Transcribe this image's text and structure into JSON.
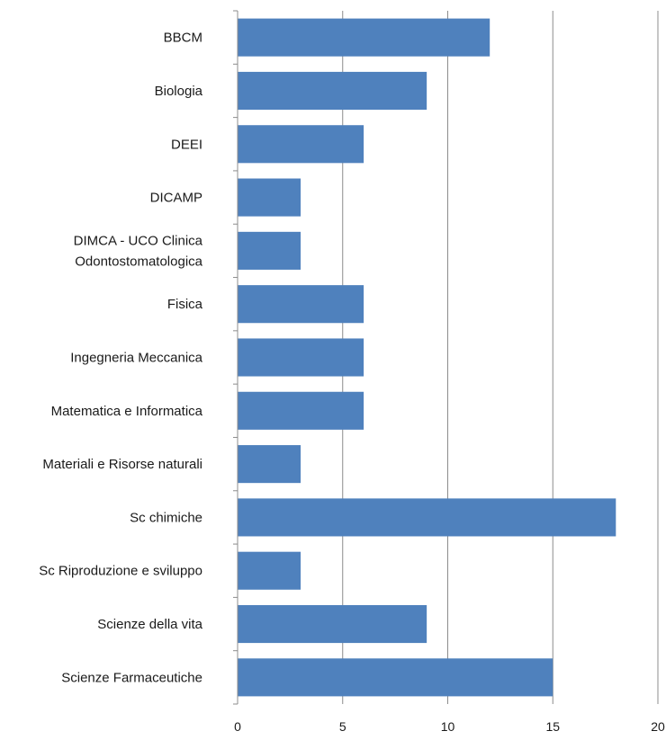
{
  "chart_data": {
    "type": "bar",
    "orientation": "horizontal",
    "title": "",
    "xlabel": "",
    "ylabel": "",
    "xlim": [
      0,
      20
    ],
    "x_ticks": [
      "0",
      "5",
      "10",
      "15",
      "20"
    ],
    "grid": "vertical",
    "bar_color": "#4f81bd",
    "categories": [
      "BBCM",
      "Biologia",
      "DEEI",
      "DICAMP",
      "DIMCA - UCO Clinica Odontostomatologica",
      "Fisica",
      "Ingegneria Meccanica",
      "Matematica e Informatica",
      "Materiali e Risorse naturali",
      "Sc chimiche",
      "Sc Riproduzione e sviluppo",
      "Scienze della vita",
      "Scienze Farmaceutiche"
    ],
    "category_lines": [
      [
        "BBCM"
      ],
      [
        "Biologia"
      ],
      [
        "DEEI"
      ],
      [
        "DICAMP"
      ],
      [
        "DIMCA - UCO Clinica",
        "Odontostomatologica"
      ],
      [
        "Fisica"
      ],
      [
        "Ingegneria Meccanica"
      ],
      [
        "Matematica e Informatica"
      ],
      [
        "Materiali e Risorse naturali"
      ],
      [
        "Sc chimiche"
      ],
      [
        "Sc Riproduzione e sviluppo"
      ],
      [
        "Scienze della vita"
      ],
      [
        "Scienze Farmaceutiche"
      ]
    ],
    "values": [
      12,
      9,
      6,
      3,
      3,
      6,
      6,
      6,
      3,
      18,
      3,
      9,
      15
    ]
  }
}
